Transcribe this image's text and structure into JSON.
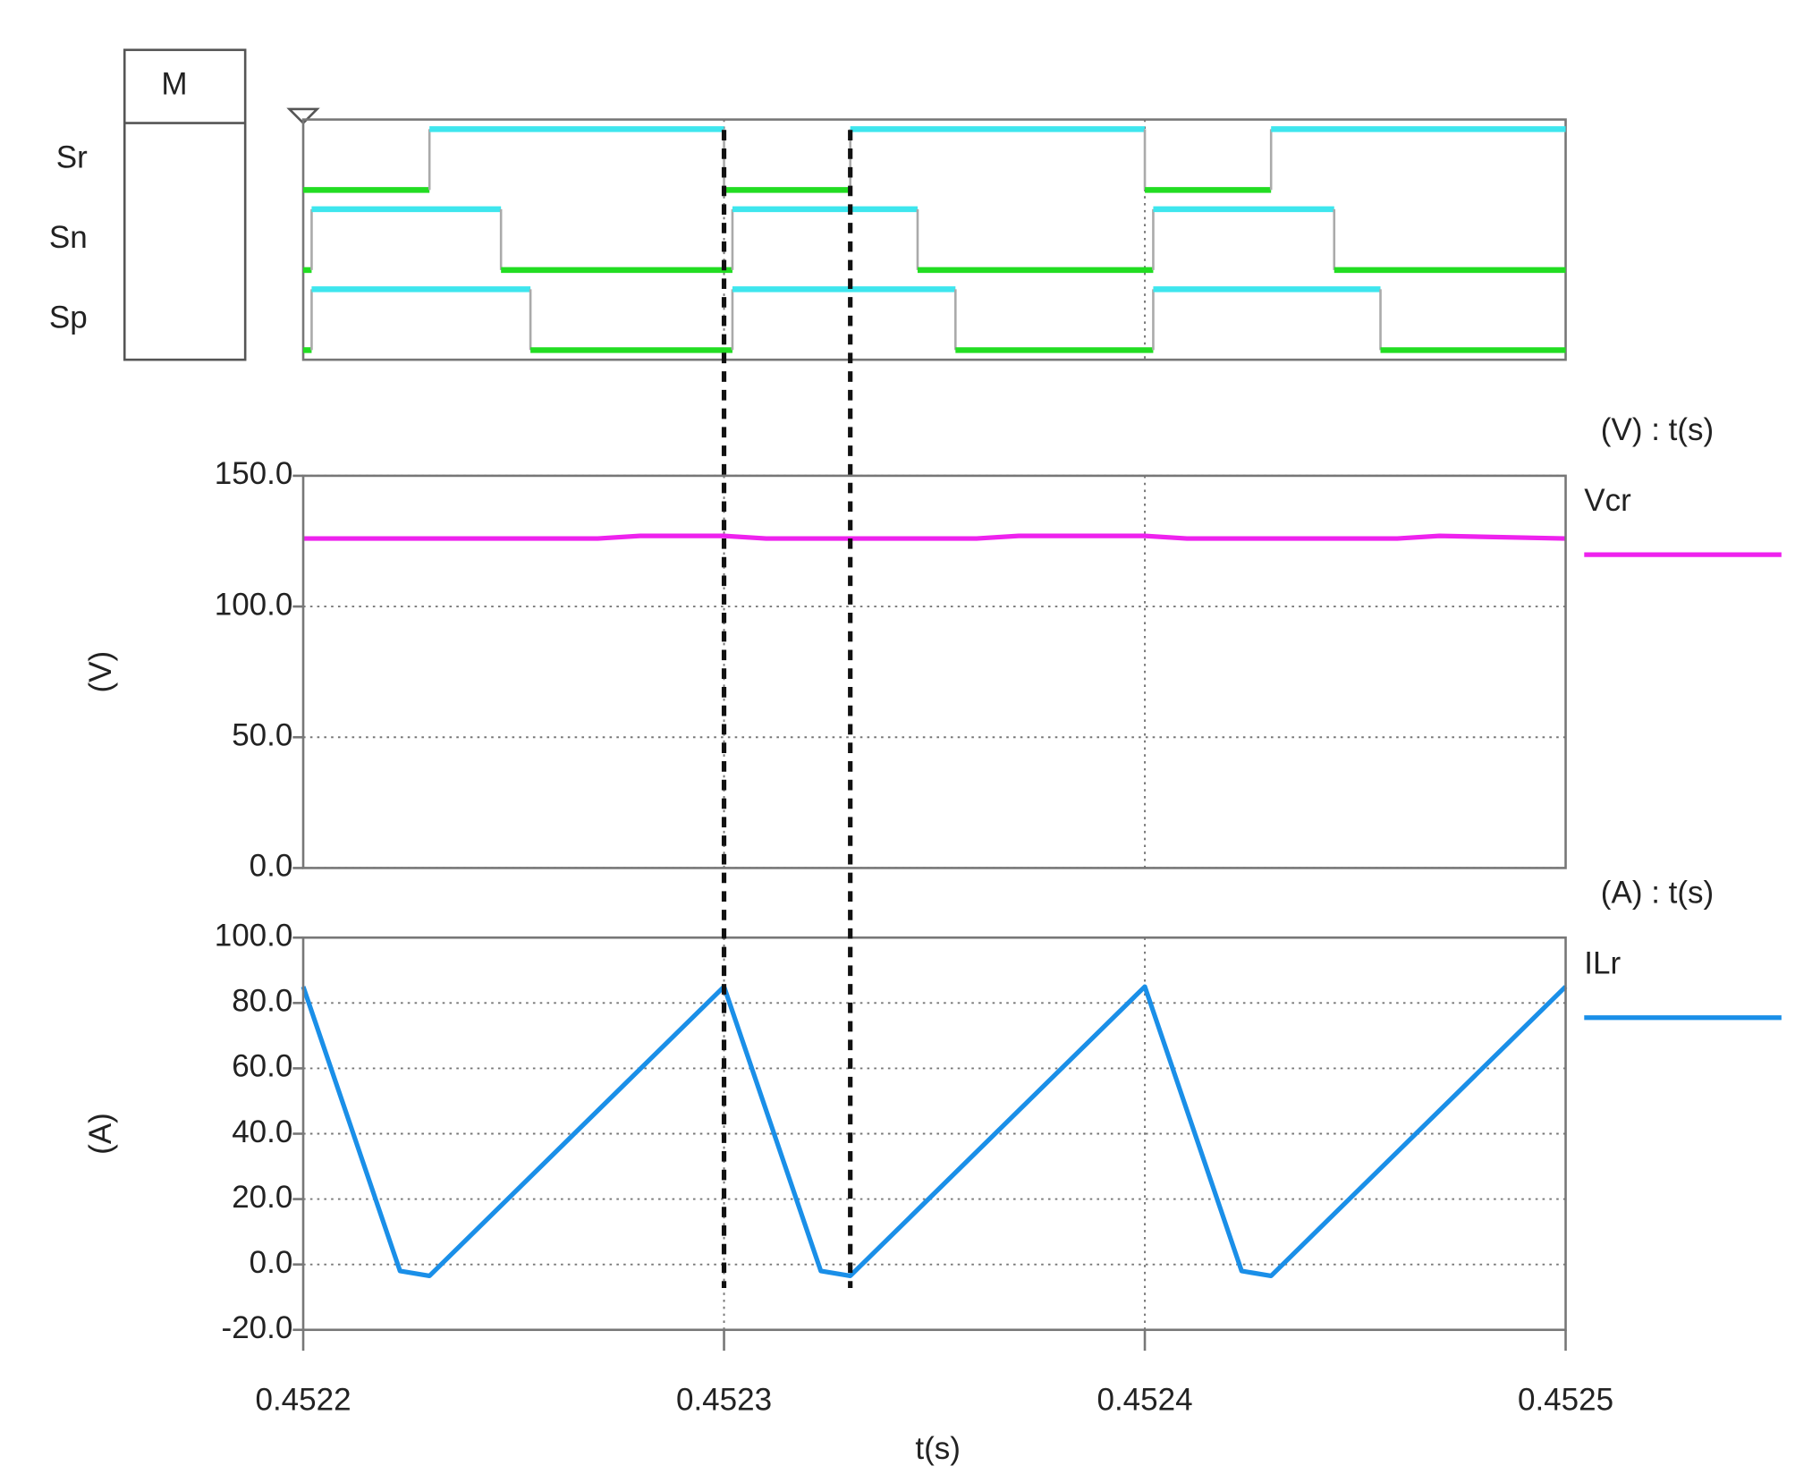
{
  "header": {
    "box_label": "M"
  },
  "chart_data": [
    {
      "type": "step",
      "high_color": "#3ee6ee",
      "low_color": "#22dd22",
      "series": [
        {
          "name": "Sr",
          "x": [
            0.4522,
            0.45223,
            0.4523,
            0.45233,
            0.4524,
            0.45243
          ],
          "values": [
            0,
            1,
            0,
            1,
            0,
            1
          ]
        },
        {
          "name": "Sn",
          "x": [
            0.4522,
            0.452202,
            0.452247,
            0.452302,
            0.452346,
            0.452402,
            0.452445
          ],
          "values": [
            0,
            1,
            0,
            1,
            0,
            1,
            0
          ]
        },
        {
          "name": "Sp",
          "x": [
            0.4522,
            0.452202,
            0.452254,
            0.452302,
            0.452355,
            0.452402,
            0.452456
          ],
          "values": [
            0,
            1,
            0,
            1,
            0,
            1,
            0
          ]
        }
      ]
    },
    {
      "type": "line",
      "axis_title": "(V) : t(s)",
      "ylabel": "(V)",
      "ylim": [
        0,
        150
      ],
      "yticks": [
        {
          "value": 0,
          "label": "0.0"
        },
        {
          "value": 50,
          "label": "50.0"
        },
        {
          "value": 100,
          "label": "100.0"
        },
        {
          "value": 150,
          "label": "150.0"
        }
      ],
      "grid": true,
      "series": [
        {
          "name": "Vcr",
          "color": "#ee22ee",
          "x": [
            0.4522,
            0.45227,
            0.45228,
            0.4523,
            0.45231,
            0.45236,
            0.45237,
            0.4524,
            0.45241,
            0.45246,
            0.45247,
            0.4525
          ],
          "values": [
            126,
            126,
            127,
            127,
            126,
            126,
            127,
            127,
            126,
            126,
            127,
            126
          ]
        }
      ]
    },
    {
      "type": "line",
      "axis_title": "(A) : t(s)",
      "ylabel": "(A)",
      "xlabel": "t(s)",
      "ylim": [
        -20,
        100
      ],
      "yticks": [
        {
          "value": -20,
          "label": "-20.0"
        },
        {
          "value": 0,
          "label": "0.0"
        },
        {
          "value": 20,
          "label": "20.0"
        },
        {
          "value": 40,
          "label": "40.0"
        },
        {
          "value": 60,
          "label": "60.0"
        },
        {
          "value": 80,
          "label": "80.0"
        },
        {
          "value": 100,
          "label": "100.0"
        }
      ],
      "xlim": [
        0.4522,
        0.4525
      ],
      "xticks": [
        0.4522,
        0.4523,
        0.4524,
        0.4525
      ],
      "grid": true,
      "markers": [
        0.4523,
        0.45233
      ],
      "series": [
        {
          "name": "ILr",
          "color": "#1a8fe8",
          "x": [
            0.4522,
            0.452223,
            0.45223,
            0.4523,
            0.452323,
            0.45233,
            0.4524,
            0.452423,
            0.45243,
            0.4525
          ],
          "values": [
            85,
            -2,
            -3.5,
            85,
            -2,
            -3.5,
            85,
            -2,
            -3.5,
            85
          ]
        }
      ]
    }
  ]
}
